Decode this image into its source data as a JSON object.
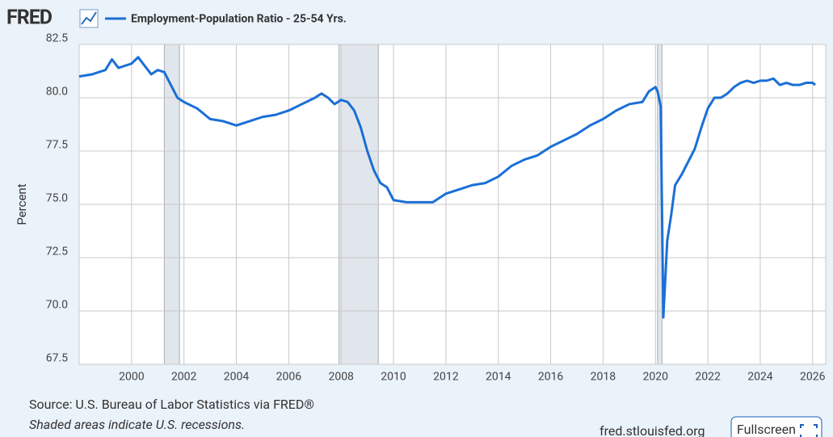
{
  "logo": "FRED",
  "chart_data": {
    "type": "line",
    "title": "Employment-Population Ratio - 25-54 Yrs.",
    "ylabel": "Percent",
    "source": "Source: U.S. Bureau of Labor Statistics via FRED®",
    "note": "Shaded areas indicate U.S. recessions.",
    "site": "fred.stlouisfed.org",
    "button": "Fullscreen",
    "xlim": [
      1998,
      2026.5
    ],
    "xticks": [
      2000,
      2002,
      2004,
      2006,
      2008,
      2010,
      2012,
      2014,
      2016,
      2018,
      2020,
      2022,
      2024,
      2026
    ],
    "ylim": [
      67.5,
      82.5
    ],
    "yticks": [
      {
        "value": 67.5,
        "label": "67.5"
      },
      {
        "value": 70,
        "label": "70.0"
      },
      72.5,
      {
        "value": 75,
        "label": "75.0"
      },
      77.5,
      {
        "value": 80,
        "label": "80.0"
      },
      82.5
    ],
    "grid": true,
    "recessions": [
      [
        2001.25,
        2001.83
      ],
      [
        2007.92,
        2009.42
      ],
      [
        2020.08,
        2020.25
      ]
    ],
    "x": [
      1998.0,
      1998.5,
      1999.0,
      1999.25,
      1999.5,
      2000.0,
      2000.25,
      2000.5,
      2000.75,
      2001.0,
      2001.25,
      2001.5,
      2001.75,
      2002.0,
      2002.5,
      2003.0,
      2003.5,
      2004.0,
      2004.5,
      2005.0,
      2005.5,
      2006.0,
      2006.5,
      2007.0,
      2007.25,
      2007.5,
      2007.75,
      2008.0,
      2008.25,
      2008.5,
      2008.75,
      2009.0,
      2009.25,
      2009.5,
      2009.75,
      2010.0,
      2010.5,
      2011.0,
      2011.5,
      2012.0,
      2012.5,
      2013.0,
      2013.5,
      2014.0,
      2014.5,
      2015.0,
      2015.5,
      2016.0,
      2016.5,
      2017.0,
      2017.5,
      2018.0,
      2018.5,
      2019.0,
      2019.5,
      2019.75,
      2020.0,
      2020.08,
      2020.2,
      2020.3,
      2020.45,
      2020.6,
      2020.75,
      2021.0,
      2021.25,
      2021.5,
      2021.75,
      2022.0,
      2022.25,
      2022.5,
      2022.75,
      2023.0,
      2023.25,
      2023.5,
      2023.75,
      2024.0,
      2024.25,
      2024.5,
      2024.75,
      2025.0,
      2025.25,
      2025.5,
      2025.75,
      2026.0,
      2026.1
    ],
    "series": [
      {
        "name": "Employment-Population Ratio - 25-54 Yrs.",
        "color": "#1a6fd6",
        "values": [
          81.0,
          81.1,
          81.3,
          81.8,
          81.4,
          81.6,
          81.9,
          81.5,
          81.1,
          81.3,
          81.2,
          80.6,
          80.0,
          79.8,
          79.5,
          79.0,
          78.9,
          78.7,
          78.9,
          79.1,
          79.2,
          79.4,
          79.7,
          80.0,
          80.2,
          80.0,
          79.7,
          79.9,
          79.8,
          79.4,
          78.6,
          77.5,
          76.6,
          76.0,
          75.8,
          75.2,
          75.1,
          75.1,
          75.1,
          75.5,
          75.7,
          75.9,
          76.0,
          76.3,
          76.8,
          77.1,
          77.3,
          77.7,
          78.0,
          78.3,
          78.7,
          79.0,
          79.4,
          79.7,
          79.8,
          80.3,
          80.5,
          80.3,
          79.6,
          69.7,
          73.3,
          74.5,
          75.9,
          76.4,
          77.0,
          77.6,
          78.6,
          79.5,
          80.0,
          80.0,
          80.2,
          80.5,
          80.7,
          80.8,
          80.7,
          80.8,
          80.8,
          80.9,
          80.6,
          80.7,
          80.6,
          80.6,
          80.7,
          80.7,
          80.6
        ]
      }
    ]
  }
}
